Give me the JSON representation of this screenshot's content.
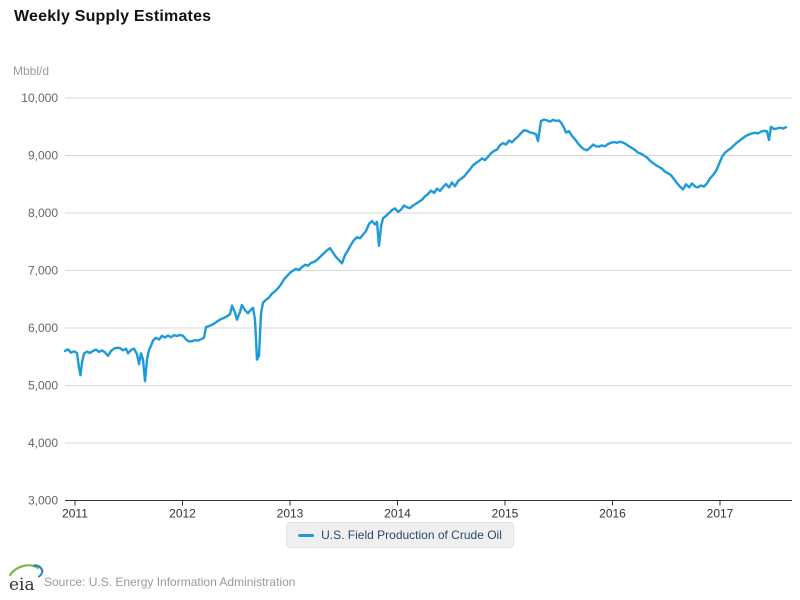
{
  "header": {
    "title": "Weekly Supply Estimates"
  },
  "legend": {
    "label": "U.S. Field Production of Crude Oil"
  },
  "footer": {
    "logo_text": "eia",
    "source": "Source: U.S. Energy Information Administration"
  },
  "colors": {
    "line": "#1d9bd7",
    "grid": "#d9d9d9",
    "axis": "#333333",
    "y_label": "#666666",
    "x_label": "#333333",
    "legend_text": "#274b6d",
    "legend_bg": "#efefef"
  },
  "chart_data": {
    "type": "line",
    "title": "Weekly Supply Estimates",
    "xlabel": "",
    "ylabel": "Mbbl/d",
    "y_unit": "Mbbl/d",
    "legend_position": "bottom",
    "grid": true,
    "xlim": [
      2010.907,
      2017.651
    ],
    "ylim": [
      3000,
      10000
    ],
    "xticks": [
      {
        "value": 2011,
        "label": "2011"
      },
      {
        "value": 2012,
        "label": "2012"
      },
      {
        "value": 2013,
        "label": "2013"
      },
      {
        "value": 2014,
        "label": "2014"
      },
      {
        "value": 2015,
        "label": "2015"
      },
      {
        "value": 2016,
        "label": "2016"
      },
      {
        "value": 2017,
        "label": "2017"
      }
    ],
    "yticks": [
      {
        "value": 3000,
        "label": "3,000"
      },
      {
        "value": 4000,
        "label": "4,000"
      },
      {
        "value": 5000,
        "label": "5,000"
      },
      {
        "value": 6000,
        "label": "6,000"
      },
      {
        "value": 7000,
        "label": "7,000"
      },
      {
        "value": 8000,
        "label": "8,000"
      },
      {
        "value": 9000,
        "label": "9,000"
      },
      {
        "value": 10000,
        "label": "10,000"
      }
    ],
    "series": [
      {
        "name": "U.S. Field Production of Crude Oil",
        "color": "#1d9bd7",
        "points": [
          [
            2010.907,
            5600
          ],
          [
            2010.935,
            5630
          ],
          [
            2010.963,
            5570
          ],
          [
            2010.991,
            5595
          ],
          [
            2011.019,
            5565
          ],
          [
            2011.037,
            5310
          ],
          [
            2011.051,
            5180
          ],
          [
            2011.065,
            5400
          ],
          [
            2011.084,
            5555
          ],
          [
            2011.112,
            5590
          ],
          [
            2011.14,
            5565
          ],
          [
            2011.167,
            5600
          ],
          [
            2011.195,
            5625
          ],
          [
            2011.223,
            5585
          ],
          [
            2011.251,
            5610
          ],
          [
            2011.279,
            5575
          ],
          [
            2011.307,
            5515
          ],
          [
            2011.335,
            5600
          ],
          [
            2011.363,
            5640
          ],
          [
            2011.391,
            5655
          ],
          [
            2011.419,
            5650
          ],
          [
            2011.447,
            5610
          ],
          [
            2011.474,
            5640
          ],
          [
            2011.493,
            5560
          ],
          [
            2011.521,
            5620
          ],
          [
            2011.549,
            5640
          ],
          [
            2011.577,
            5545
          ],
          [
            2011.595,
            5370
          ],
          [
            2011.614,
            5560
          ],
          [
            2011.633,
            5450
          ],
          [
            2011.651,
            5075
          ],
          [
            2011.67,
            5450
          ],
          [
            2011.688,
            5615
          ],
          [
            2011.707,
            5690
          ],
          [
            2011.726,
            5780
          ],
          [
            2011.753,
            5830
          ],
          [
            2011.781,
            5800
          ],
          [
            2011.809,
            5865
          ],
          [
            2011.837,
            5835
          ],
          [
            2011.865,
            5870
          ],
          [
            2011.893,
            5840
          ],
          [
            2011.921,
            5875
          ],
          [
            2011.949,
            5860
          ],
          [
            2011.977,
            5880
          ],
          [
            2012.005,
            5865
          ],
          [
            2012.033,
            5800
          ],
          [
            2012.06,
            5765
          ],
          [
            2012.088,
            5770
          ],
          [
            2012.116,
            5790
          ],
          [
            2012.144,
            5780
          ],
          [
            2012.172,
            5805
          ],
          [
            2012.2,
            5830
          ],
          [
            2012.219,
            6015
          ],
          [
            2012.247,
            6035
          ],
          [
            2012.274,
            6055
          ],
          [
            2012.302,
            6085
          ],
          [
            2012.33,
            6125
          ],
          [
            2012.358,
            6155
          ],
          [
            2012.386,
            6175
          ],
          [
            2012.414,
            6205
          ],
          [
            2012.442,
            6240
          ],
          [
            2012.46,
            6390
          ],
          [
            2012.488,
            6270
          ],
          [
            2012.507,
            6145
          ],
          [
            2012.535,
            6280
          ],
          [
            2012.553,
            6400
          ],
          [
            2012.581,
            6310
          ],
          [
            2012.609,
            6255
          ],
          [
            2012.637,
            6320
          ],
          [
            2012.656,
            6350
          ],
          [
            2012.674,
            6150
          ],
          [
            2012.693,
            5450
          ],
          [
            2012.712,
            5520
          ],
          [
            2012.73,
            6250
          ],
          [
            2012.749,
            6440
          ],
          [
            2012.777,
            6490
          ],
          [
            2012.805,
            6530
          ],
          [
            2012.833,
            6600
          ],
          [
            2012.86,
            6640
          ],
          [
            2012.888,
            6690
          ],
          [
            2012.916,
            6760
          ],
          [
            2012.944,
            6845
          ],
          [
            2012.972,
            6905
          ],
          [
            2013.0,
            6960
          ],
          [
            2013.028,
            6995
          ],
          [
            2013.056,
            7030
          ],
          [
            2013.084,
            7005
          ],
          [
            2013.112,
            7060
          ],
          [
            2013.14,
            7100
          ],
          [
            2013.167,
            7085
          ],
          [
            2013.195,
            7130
          ],
          [
            2013.223,
            7150
          ],
          [
            2013.251,
            7185
          ],
          [
            2013.279,
            7235
          ],
          [
            2013.307,
            7285
          ],
          [
            2013.335,
            7335
          ],
          [
            2013.372,
            7390
          ],
          [
            2013.4,
            7310
          ],
          [
            2013.428,
            7235
          ],
          [
            2013.456,
            7180
          ],
          [
            2013.484,
            7125
          ],
          [
            2013.512,
            7270
          ],
          [
            2013.54,
            7355
          ],
          [
            2013.567,
            7450
          ],
          [
            2013.595,
            7530
          ],
          [
            2013.623,
            7580
          ],
          [
            2013.651,
            7560
          ],
          [
            2013.679,
            7625
          ],
          [
            2013.707,
            7685
          ],
          [
            2013.735,
            7810
          ],
          [
            2013.763,
            7860
          ],
          [
            2013.791,
            7800
          ],
          [
            2013.809,
            7845
          ],
          [
            2013.828,
            7430
          ],
          [
            2013.847,
            7770
          ],
          [
            2013.865,
            7910
          ],
          [
            2013.893,
            7950
          ],
          [
            2013.921,
            8000
          ],
          [
            2013.949,
            8050
          ],
          [
            2013.977,
            8080
          ],
          [
            2014.005,
            8020
          ],
          [
            2014.033,
            8060
          ],
          [
            2014.06,
            8130
          ],
          [
            2014.088,
            8100
          ],
          [
            2014.116,
            8085
          ],
          [
            2014.144,
            8130
          ],
          [
            2014.172,
            8160
          ],
          [
            2014.2,
            8195
          ],
          [
            2014.228,
            8230
          ],
          [
            2014.256,
            8290
          ],
          [
            2014.284,
            8330
          ],
          [
            2014.312,
            8390
          ],
          [
            2014.34,
            8350
          ],
          [
            2014.367,
            8425
          ],
          [
            2014.395,
            8385
          ],
          [
            2014.423,
            8450
          ],
          [
            2014.451,
            8505
          ],
          [
            2014.479,
            8445
          ],
          [
            2014.507,
            8530
          ],
          [
            2014.535,
            8465
          ],
          [
            2014.563,
            8555
          ],
          [
            2014.591,
            8595
          ],
          [
            2014.619,
            8635
          ],
          [
            2014.647,
            8700
          ],
          [
            2014.674,
            8760
          ],
          [
            2014.702,
            8830
          ],
          [
            2014.73,
            8870
          ],
          [
            2014.758,
            8905
          ],
          [
            2014.786,
            8950
          ],
          [
            2014.814,
            8920
          ],
          [
            2014.842,
            8975
          ],
          [
            2014.87,
            9040
          ],
          [
            2014.898,
            9080
          ],
          [
            2014.926,
            9105
          ],
          [
            2014.953,
            9180
          ],
          [
            2014.981,
            9215
          ],
          [
            2015.009,
            9190
          ],
          [
            2015.037,
            9260
          ],
          [
            2015.065,
            9230
          ],
          [
            2015.093,
            9285
          ],
          [
            2015.121,
            9330
          ],
          [
            2015.149,
            9390
          ],
          [
            2015.177,
            9440
          ],
          [
            2015.205,
            9430
          ],
          [
            2015.233,
            9400
          ],
          [
            2015.26,
            9390
          ],
          [
            2015.288,
            9370
          ],
          [
            2015.307,
            9250
          ],
          [
            2015.335,
            9600
          ],
          [
            2015.363,
            9625
          ],
          [
            2015.391,
            9610
          ],
          [
            2015.419,
            9590
          ],
          [
            2015.447,
            9620
          ],
          [
            2015.474,
            9600
          ],
          [
            2015.502,
            9610
          ],
          [
            2015.53,
            9550
          ],
          [
            2015.549,
            9480
          ],
          [
            2015.567,
            9400
          ],
          [
            2015.595,
            9425
          ],
          [
            2015.623,
            9340
          ],
          [
            2015.651,
            9280
          ],
          [
            2015.679,
            9210
          ],
          [
            2015.707,
            9150
          ],
          [
            2015.735,
            9110
          ],
          [
            2015.763,
            9090
          ],
          [
            2015.791,
            9135
          ],
          [
            2015.819,
            9190
          ],
          [
            2015.847,
            9160
          ],
          [
            2015.874,
            9155
          ],
          [
            2015.902,
            9175
          ],
          [
            2015.93,
            9160
          ],
          [
            2015.958,
            9200
          ],
          [
            2015.986,
            9220
          ],
          [
            2016.014,
            9235
          ],
          [
            2016.042,
            9220
          ],
          [
            2016.07,
            9240
          ],
          [
            2016.098,
            9225
          ],
          [
            2016.126,
            9195
          ],
          [
            2016.153,
            9160
          ],
          [
            2016.181,
            9130
          ],
          [
            2016.209,
            9095
          ],
          [
            2016.237,
            9050
          ],
          [
            2016.265,
            9030
          ],
          [
            2016.293,
            9000
          ],
          [
            2016.321,
            8965
          ],
          [
            2016.349,
            8910
          ],
          [
            2016.377,
            8870
          ],
          [
            2016.405,
            8830
          ],
          [
            2016.433,
            8800
          ],
          [
            2016.46,
            8770
          ],
          [
            2016.488,
            8720
          ],
          [
            2016.516,
            8690
          ],
          [
            2016.544,
            8660
          ],
          [
            2016.572,
            8590
          ],
          [
            2016.6,
            8520
          ],
          [
            2016.628,
            8460
          ],
          [
            2016.656,
            8410
          ],
          [
            2016.684,
            8500
          ],
          [
            2016.712,
            8445
          ],
          [
            2016.74,
            8515
          ],
          [
            2016.767,
            8460
          ],
          [
            2016.795,
            8445
          ],
          [
            2016.823,
            8480
          ],
          [
            2016.851,
            8460
          ],
          [
            2016.879,
            8515
          ],
          [
            2016.907,
            8600
          ],
          [
            2016.935,
            8660
          ],
          [
            2016.963,
            8730
          ],
          [
            2016.991,
            8850
          ],
          [
            2017.019,
            8980
          ],
          [
            2017.047,
            9050
          ],
          [
            2017.074,
            9090
          ],
          [
            2017.102,
            9125
          ],
          [
            2017.13,
            9180
          ],
          [
            2017.158,
            9225
          ],
          [
            2017.186,
            9265
          ],
          [
            2017.214,
            9305
          ],
          [
            2017.242,
            9340
          ],
          [
            2017.27,
            9365
          ],
          [
            2017.298,
            9385
          ],
          [
            2017.326,
            9395
          ],
          [
            2017.353,
            9385
          ],
          [
            2017.381,
            9415
          ],
          [
            2017.409,
            9430
          ],
          [
            2017.437,
            9420
          ],
          [
            2017.456,
            9270
          ],
          [
            2017.474,
            9500
          ],
          [
            2017.502,
            9460
          ],
          [
            2017.53,
            9470
          ],
          [
            2017.558,
            9485
          ],
          [
            2017.586,
            9470
          ],
          [
            2017.614,
            9490
          ]
        ]
      }
    ]
  }
}
